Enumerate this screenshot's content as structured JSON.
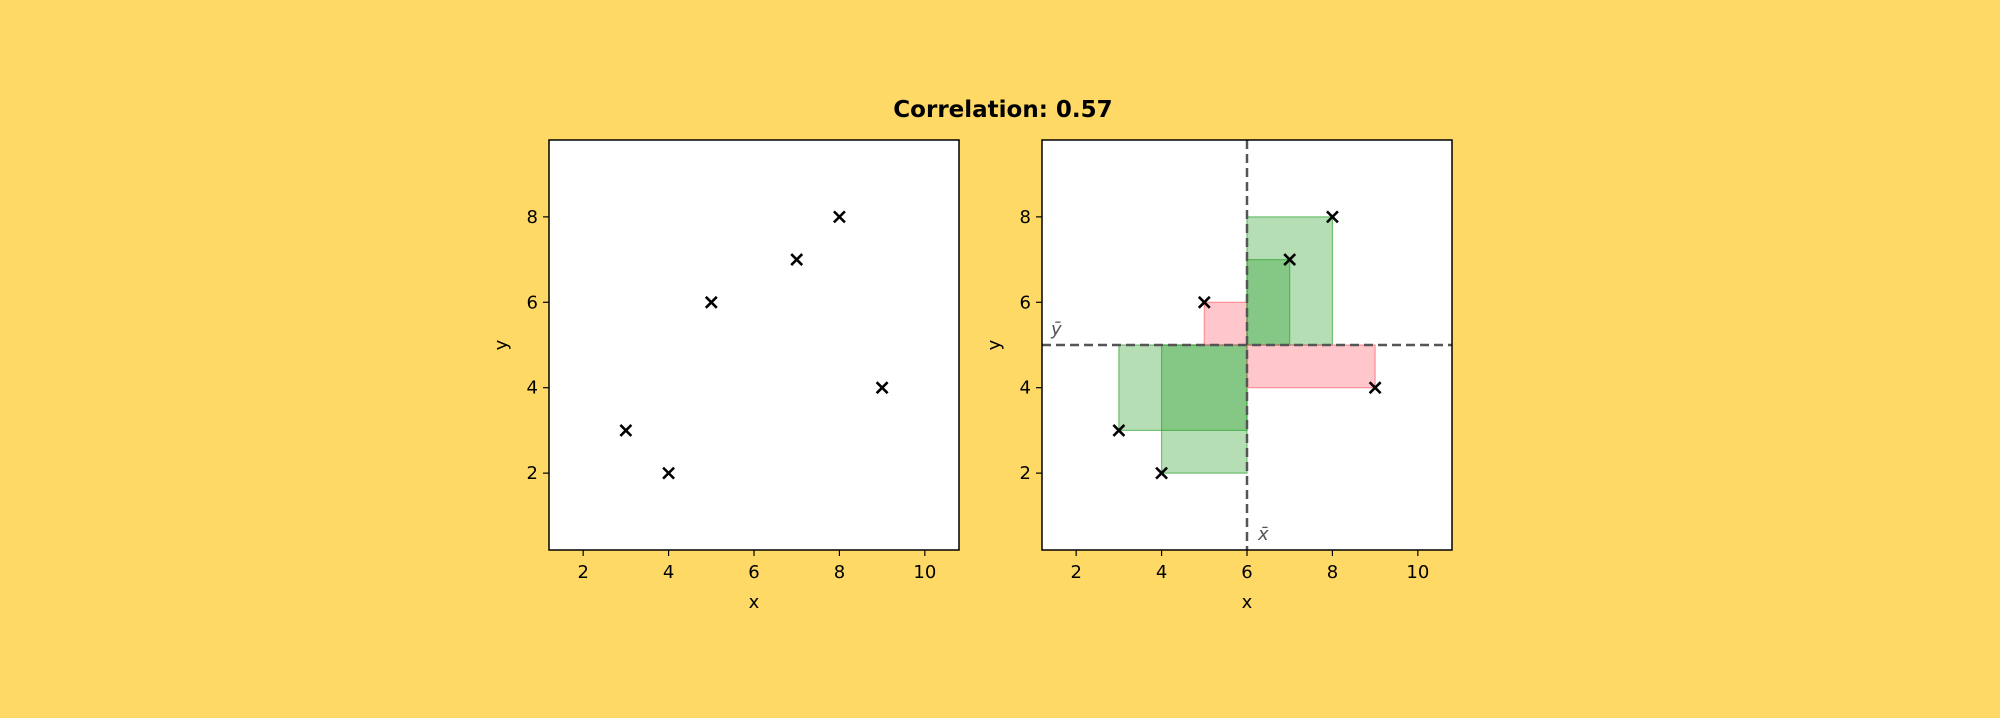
{
  "figure": {
    "title": "Correlation: 0.57",
    "background": "#FED966"
  },
  "chart_data": [
    {
      "type": "scatter",
      "xlabel": "x",
      "ylabel": "y",
      "xlim": [
        1.2,
        10.8
      ],
      "ylim": [
        0.2,
        9.8
      ],
      "xticks": [
        2,
        4,
        6,
        8,
        10
      ],
      "yticks": [
        2,
        4,
        6,
        8
      ],
      "marker": "x",
      "marker_color": "#000000",
      "points": [
        {
          "x": 3,
          "y": 3
        },
        {
          "x": 4,
          "y": 2
        },
        {
          "x": 5,
          "y": 6
        },
        {
          "x": 7,
          "y": 7
        },
        {
          "x": 8,
          "y": 8
        },
        {
          "x": 9,
          "y": 4
        }
      ],
      "grid": false
    },
    {
      "type": "scatter",
      "xlabel": "x",
      "ylabel": "y",
      "xlim": [
        1.2,
        10.8
      ],
      "ylim": [
        0.2,
        9.8
      ],
      "xticks": [
        2,
        4,
        6,
        8,
        10
      ],
      "yticks": [
        2,
        4,
        6,
        8
      ],
      "marker": "x",
      "marker_color": "#000000",
      "points": [
        {
          "x": 3,
          "y": 3
        },
        {
          "x": 4,
          "y": 2
        },
        {
          "x": 5,
          "y": 6
        },
        {
          "x": 7,
          "y": 7
        },
        {
          "x": 8,
          "y": 8
        },
        {
          "x": 9,
          "y": 4
        }
      ],
      "grid": false,
      "mean_lines": {
        "x_mean": 6,
        "y_mean": 5,
        "x_label": "x̄",
        "y_label": "ȳ",
        "color": "#555555",
        "style": "dashed"
      },
      "rectangles": {
        "positive_color": "#2ca02c",
        "negative_color": "#ff5b6b",
        "opacity": 0.35,
        "note": "rectangle from each point to (x̄, ȳ); green for positive product of deviations, red for negative"
      }
    }
  ]
}
